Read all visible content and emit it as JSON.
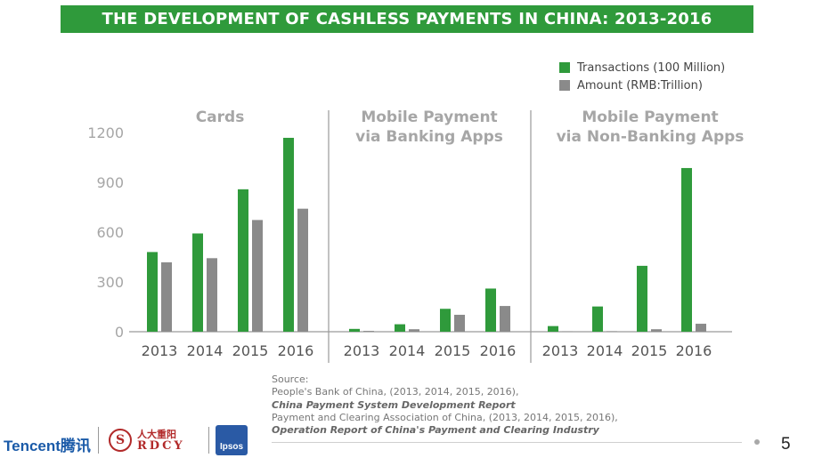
{
  "title": "THE DEVELOPMENT OF CASHLESS PAYMENTS IN CHINA: 2013-2016",
  "colors": {
    "green": "#2f9a3b",
    "gray": "#8a8a8a",
    "banner": "#2f9a3b"
  },
  "chart_data": {
    "type": "bar",
    "title": "THE DEVELOPMENT OF CASHLESS PAYMENTS IN CHINA: 2013-2016",
    "ylim": [
      0,
      1200
    ],
    "yticks": [
      "0",
      "300",
      "600",
      "900",
      "1200"
    ],
    "grid": false,
    "legend_position": "top-right",
    "series": [
      {
        "name": "Transactions (100 Million)",
        "color": "#2f9a3b"
      },
      {
        "name": "Amount (RMB:Trillion)",
        "color": "#8a8a8a"
      }
    ],
    "panels": [
      {
        "title_lines": [
          "Cards"
        ],
        "categories": [
          "2013",
          "2014",
          "2015",
          "2016"
        ],
        "transactions": [
          480,
          592,
          858,
          1168
        ],
        "amount": [
          418,
          443,
          673,
          741
        ]
      },
      {
        "title_lines": [
          "Mobile Payment",
          "via Banking Apps"
        ],
        "categories": [
          "2013",
          "2014",
          "2015",
          "2016"
        ],
        "transactions": [
          17,
          45,
          138,
          260
        ],
        "amount": [
          5,
          15,
          102,
          155
        ]
      },
      {
        "title_lines": [
          "Mobile Payment",
          "via Non-Banking Apps"
        ],
        "categories": [
          "2013",
          "2014",
          "2015",
          "2016"
        ],
        "transactions": [
          34,
          152,
          397,
          986
        ],
        "amount": [
          2,
          3,
          15,
          48
        ]
      }
    ]
  },
  "source": {
    "label": "Source:",
    "line1": "People's Bank of China, (2013, 2014, 2015, 2016),",
    "line2": "China Payment System Development Report",
    "line3": "Payment and Clearing Association of China, (2013, 2014, 2015, 2016),",
    "line4": "Operation Report of China's Payment and Clearing Industry"
  },
  "logos": {
    "tencent": "Tencent腾讯",
    "rdcy_cn": "人大重阳",
    "rdcy_en": "RDCY",
    "rdcy_seal": "S",
    "ipsos": "Ipsos"
  },
  "page_number": "5"
}
